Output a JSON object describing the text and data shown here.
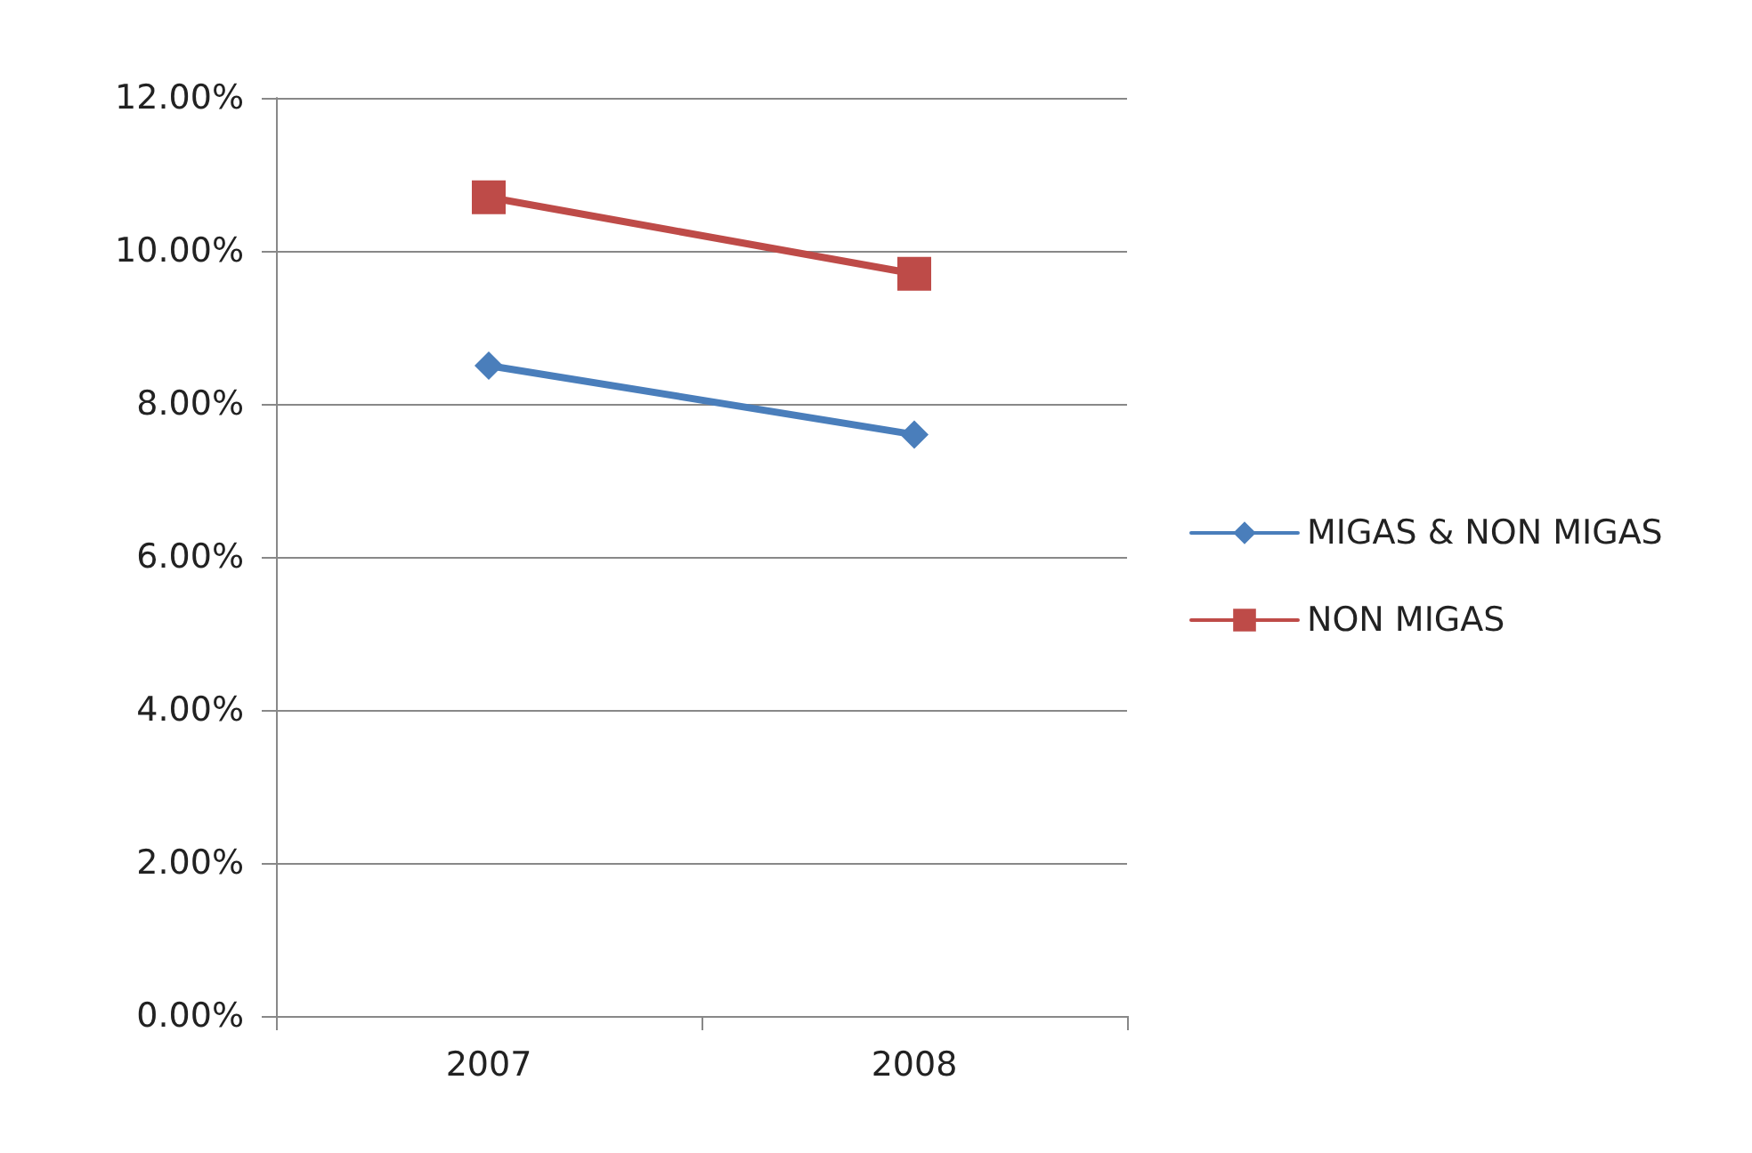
{
  "chart_data": {
    "type": "line",
    "categories": [
      "2007",
      "2008"
    ],
    "series": [
      {
        "name": "MIGAS & NON MIGAS",
        "color": "#4a7ebb",
        "marker": "diamond",
        "values": [
          8.5,
          7.6
        ]
      },
      {
        "name": "NON MIGAS",
        "color": "#be4b48",
        "marker": "square",
        "values": [
          10.7,
          9.7
        ]
      }
    ],
    "ylim": [
      0,
      12
    ],
    "yticks": [
      {
        "value": 0,
        "label": "0.00%"
      },
      {
        "value": 2,
        "label": "2.00%"
      },
      {
        "value": 4,
        "label": "4.00%"
      },
      {
        "value": 6,
        "label": "6.00%"
      },
      {
        "value": 8,
        "label": "8.00%"
      },
      {
        "value": 10,
        "label": "10.00%"
      },
      {
        "value": 12,
        "label": "12.00%"
      }
    ],
    "grid": "y",
    "legend": "right",
    "line_style": "solid"
  }
}
